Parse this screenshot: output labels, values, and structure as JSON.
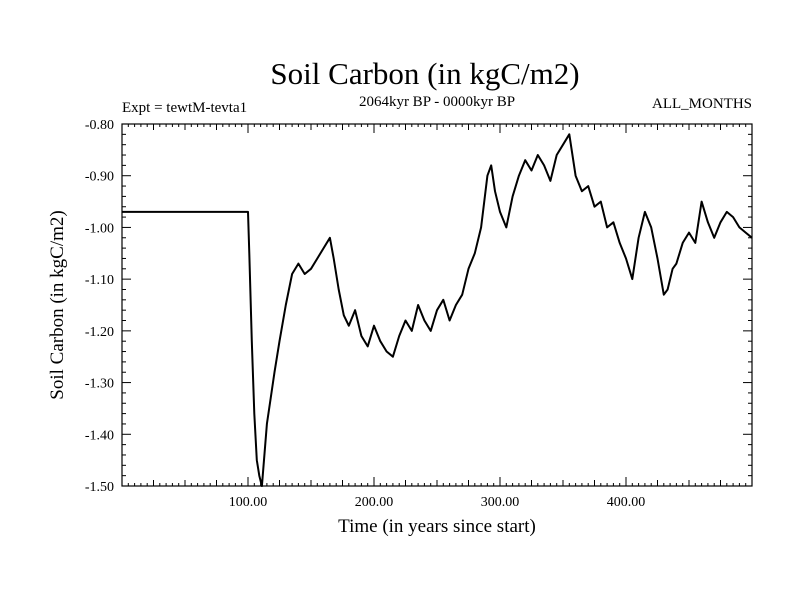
{
  "chart_data": {
    "type": "line",
    "title": "Soil Carbon (in kgC/m2)",
    "subtitle_left": "Expt = tewtM-tevta1",
    "subtitle_center": "2064kyr BP - 0000kyr BP",
    "subtitle_right": "ALL_MONTHS",
    "xlabel": "Time (in years since start)",
    "ylabel": "Soil Carbon (in kgC/m2)",
    "xlim": [
      0,
      500
    ],
    "ylim": [
      -1.5,
      -0.8
    ],
    "x_ticks": [
      100,
      200,
      300,
      400
    ],
    "x_tick_labels": [
      "100.00",
      "200.00",
      "300.00",
      "400.00"
    ],
    "y_ticks": [
      -1.5,
      -1.4,
      -1.3,
      -1.2,
      -1.1,
      -1.0,
      -0.9,
      -0.8
    ],
    "y_tick_labels": [
      "-1.50",
      "-1.40",
      "-1.30",
      "-1.20",
      "-1.10",
      "-1.00",
      "-0.90",
      "-0.80"
    ],
    "series": [
      {
        "name": "Soil Carbon",
        "color": "#000000",
        "x": [
          0,
          100,
          101,
          103,
          105,
          107,
          109,
          111,
          113,
          115,
          118,
          121,
          125,
          130,
          135,
          140,
          145,
          150,
          155,
          160,
          165,
          168,
          172,
          176,
          180,
          185,
          190,
          195,
          200,
          205,
          210,
          215,
          220,
          225,
          230,
          235,
          240,
          245,
          250,
          255,
          260,
          265,
          270,
          275,
          280,
          285,
          290,
          293,
          296,
          300,
          305,
          310,
          315,
          320,
          325,
          330,
          335,
          340,
          345,
          350,
          355,
          360,
          365,
          370,
          375,
          380,
          385,
          390,
          395,
          400,
          405,
          410,
          415,
          420,
          425,
          430,
          433,
          437,
          440,
          445,
          450,
          455,
          460,
          465,
          470,
          475,
          480,
          485,
          490,
          495,
          500
        ],
        "values": [
          -0.97,
          -0.97,
          -1.05,
          -1.22,
          -1.36,
          -1.45,
          -1.48,
          -1.5,
          -1.44,
          -1.38,
          -1.33,
          -1.28,
          -1.22,
          -1.15,
          -1.09,
          -1.07,
          -1.09,
          -1.08,
          -1.06,
          -1.04,
          -1.02,
          -1.06,
          -1.12,
          -1.17,
          -1.19,
          -1.16,
          -1.21,
          -1.23,
          -1.19,
          -1.22,
          -1.24,
          -1.25,
          -1.21,
          -1.18,
          -1.2,
          -1.15,
          -1.18,
          -1.2,
          -1.16,
          -1.14,
          -1.18,
          -1.15,
          -1.13,
          -1.08,
          -1.05,
          -1.0,
          -0.9,
          -0.88,
          -0.93,
          -0.97,
          -1.0,
          -0.94,
          -0.9,
          -0.87,
          -0.89,
          -0.86,
          -0.88,
          -0.91,
          -0.86,
          -0.84,
          -0.82,
          -0.9,
          -0.93,
          -0.92,
          -0.96,
          -0.95,
          -1.0,
          -0.99,
          -1.03,
          -1.06,
          -1.1,
          -1.02,
          -0.97,
          -1.0,
          -1.06,
          -1.13,
          -1.12,
          -1.08,
          -1.07,
          -1.03,
          -1.01,
          -1.03,
          -0.95,
          -0.99,
          -1.02,
          -0.99,
          -0.97,
          -0.98,
          -1.0,
          -1.01,
          -1.02
        ]
      }
    ]
  }
}
